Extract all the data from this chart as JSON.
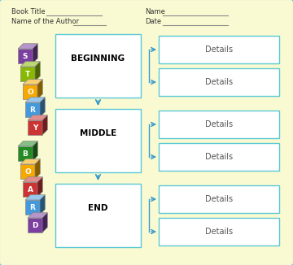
{
  "bg_color": "#FAFAD2",
  "border_color": "#5BC8D4",
  "box_color": "#FFFFFF",
  "box_edge_color": "#5BC8D4",
  "arrow_color": "#3399CC",
  "text_color": "#000000",
  "label_color": "#555555",
  "header_color": "#333333",
  "title": "Book Title",
  "author": "Name of the Author",
  "name_label": "Name",
  "date_label": "Date",
  "sections": [
    "BEGINNING",
    "MIDDLE",
    "END"
  ],
  "detail_label": "Details",
  "story_letters": [
    "S",
    "T",
    "O",
    "R",
    "Y"
  ],
  "board_letters": [
    "B",
    "O",
    "A",
    "R",
    "D"
  ],
  "story_colors": [
    "#7B3FA0",
    "#88B800",
    "#F5A800",
    "#4499DD",
    "#CC3333"
  ],
  "board_colors": [
    "#228B22",
    "#F5A800",
    "#CC3333",
    "#4499DD",
    "#7B3FA0"
  ],
  "outer_bg": "#CCCCCC"
}
